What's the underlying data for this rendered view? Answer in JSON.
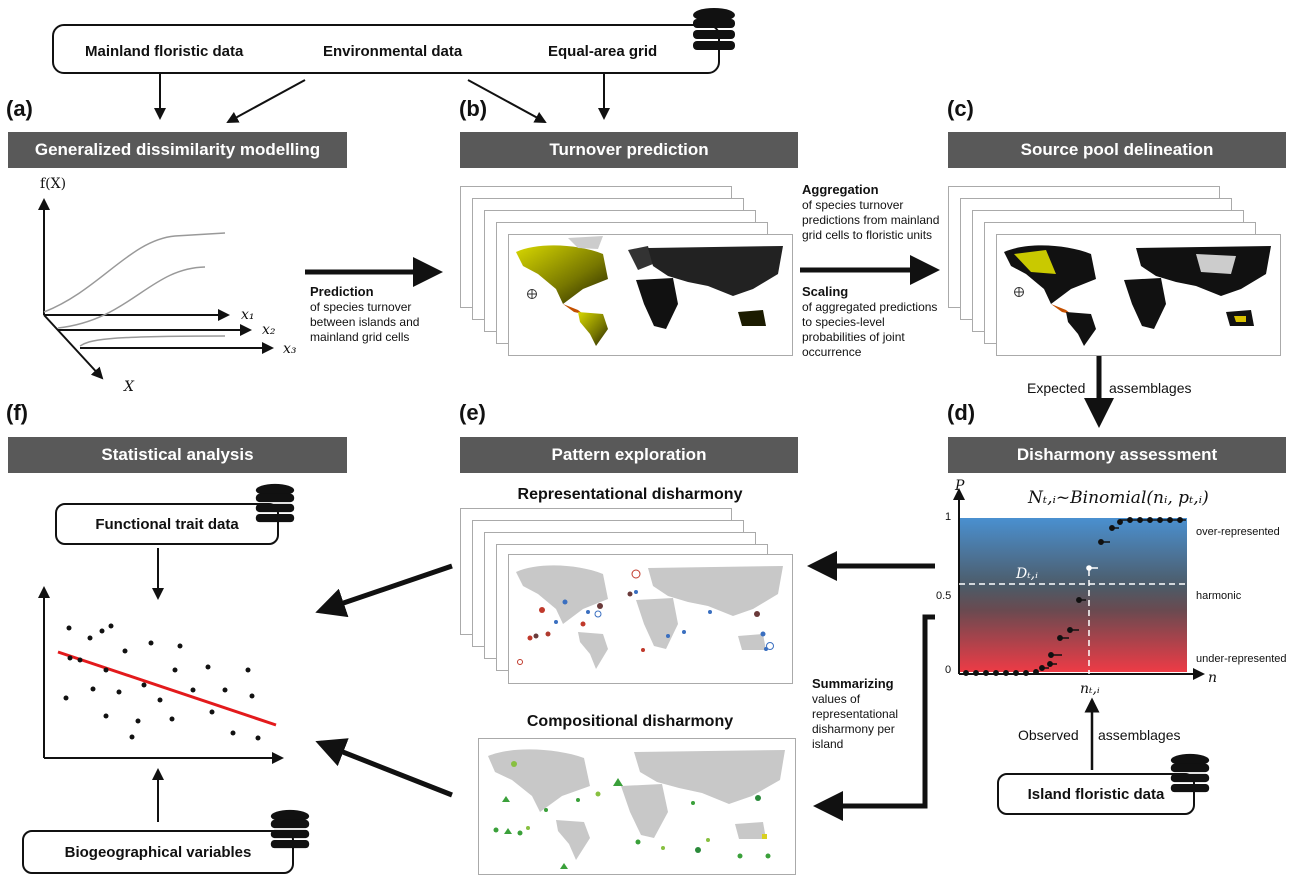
{
  "top": {
    "mainland_floristic_data": "Mainland floristic data",
    "environmental_data": "Environmental data",
    "equal_area_grid": "Equal-area grid"
  },
  "panels": {
    "a": {
      "letter": "(a)",
      "title": "Generalized dissimilarity modelling"
    },
    "b": {
      "letter": "(b)",
      "title": "Turnover prediction"
    },
    "c": {
      "letter": "(c)",
      "title": "Source pool delineation"
    },
    "d": {
      "letter": "(d)",
      "title": "Disharmony assessment"
    },
    "e": {
      "letter": "(e)",
      "title": "Pattern exploration"
    },
    "f": {
      "letter": "(f)",
      "title": "Statistical  analysis"
    }
  },
  "gdm_axes": {
    "fx": "f(X)",
    "x1": "x₁",
    "x2": "x₂",
    "x3": "x₃",
    "X": "X"
  },
  "notes": {
    "prediction_head": "Prediction",
    "prediction_body": "of species turnover between islands and mainland grid cells",
    "aggregation_head": "Aggregation",
    "aggregation_body": "of species turnover predictions from mainland grid cells to floristic units",
    "scaling_head": "Scaling",
    "scaling_body": "of aggregated predictions to species-level probabilities of joint occurrence",
    "expected": "Expected",
    "assemblages1": "assemblages",
    "observed": "Observed",
    "assemblages2": "assemblages",
    "summarizing_head": "Summarizing",
    "summarizing_body": "values of representational disharmony per island"
  },
  "disharmony_plot": {
    "formula": "Nₜ,ᵢ~Binomial(nᵢ, pₜ,ᵢ)",
    "p_label": "P",
    "n_label": "n",
    "nti_label": "nₜ,ᵢ",
    "dti_label": "Dₜ,ᵢ",
    "tick_1": "1",
    "tick_05": "0.5",
    "tick_0": "0",
    "over": "over-represented",
    "harmonic": "harmonic",
    "under": "under-represented"
  },
  "representational": "Representational disharmony",
  "compositional": "Compositional disharmony",
  "functional_trait_data": "Functional trait data",
  "biogeographical_variables": "Biogeographical variables",
  "island_floristic_data": "Island floristic data",
  "colors": {
    "header_bg": "#595959",
    "regression": "#e31a1c",
    "plot_top": "#4a90d0",
    "plot_bottom": "#ee3b46"
  }
}
